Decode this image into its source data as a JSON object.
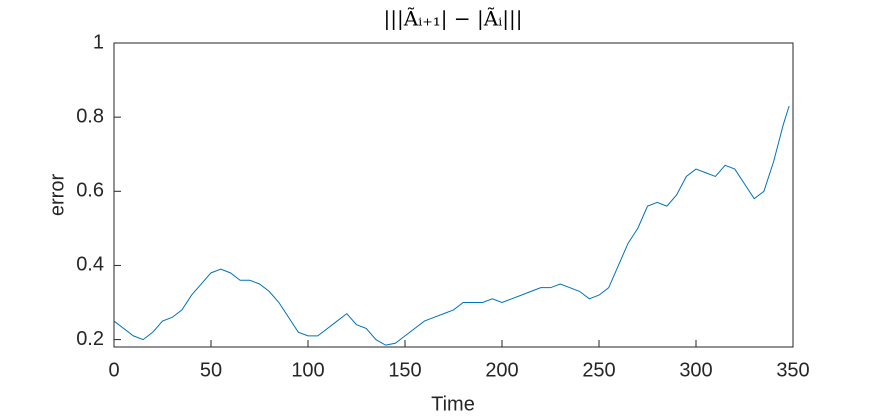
{
  "chart_data": {
    "type": "line",
    "title": "|||Ãᵢ₊₁| − |Ãᵢ|||",
    "xlabel": "Time",
    "ylabel": "error",
    "x": [
      0,
      5,
      10,
      15,
      20,
      25,
      30,
      35,
      40,
      45,
      50,
      55,
      60,
      65,
      70,
      75,
      80,
      85,
      90,
      95,
      100,
      105,
      110,
      115,
      120,
      125,
      130,
      135,
      140,
      145,
      150,
      155,
      160,
      165,
      170,
      175,
      180,
      185,
      190,
      195,
      200,
      205,
      210,
      215,
      220,
      225,
      230,
      235,
      240,
      245,
      250,
      255,
      260,
      265,
      270,
      275,
      280,
      285,
      290,
      295,
      300,
      305,
      310,
      315,
      320,
      325,
      330,
      335,
      340,
      345,
      348
    ],
    "series": [
      {
        "name": "error",
        "color": "#0072bd",
        "values": [
          0.25,
          0.23,
          0.21,
          0.2,
          0.22,
          0.25,
          0.26,
          0.28,
          0.32,
          0.35,
          0.38,
          0.39,
          0.38,
          0.36,
          0.36,
          0.35,
          0.33,
          0.3,
          0.26,
          0.22,
          0.21,
          0.21,
          0.23,
          0.25,
          0.27,
          0.24,
          0.23,
          0.2,
          0.185,
          0.19,
          0.21,
          0.23,
          0.25,
          0.26,
          0.27,
          0.28,
          0.3,
          0.3,
          0.3,
          0.31,
          0.3,
          0.31,
          0.32,
          0.33,
          0.34,
          0.34,
          0.35,
          0.34,
          0.33,
          0.31,
          0.32,
          0.34,
          0.4,
          0.46,
          0.5,
          0.56,
          0.57,
          0.56,
          0.59,
          0.64,
          0.66,
          0.65,
          0.64,
          0.67,
          0.66,
          0.62,
          0.58,
          0.6,
          0.68,
          0.78,
          0.83
        ]
      }
    ],
    "xlim": [
      0,
      350
    ],
    "xticks": [
      0,
      50,
      100,
      150,
      200,
      250,
      300,
      350
    ],
    "ylim": [
      0.18,
      1
    ],
    "yticks": [
      0.2,
      0.4,
      0.6,
      0.8,
      1
    ]
  }
}
